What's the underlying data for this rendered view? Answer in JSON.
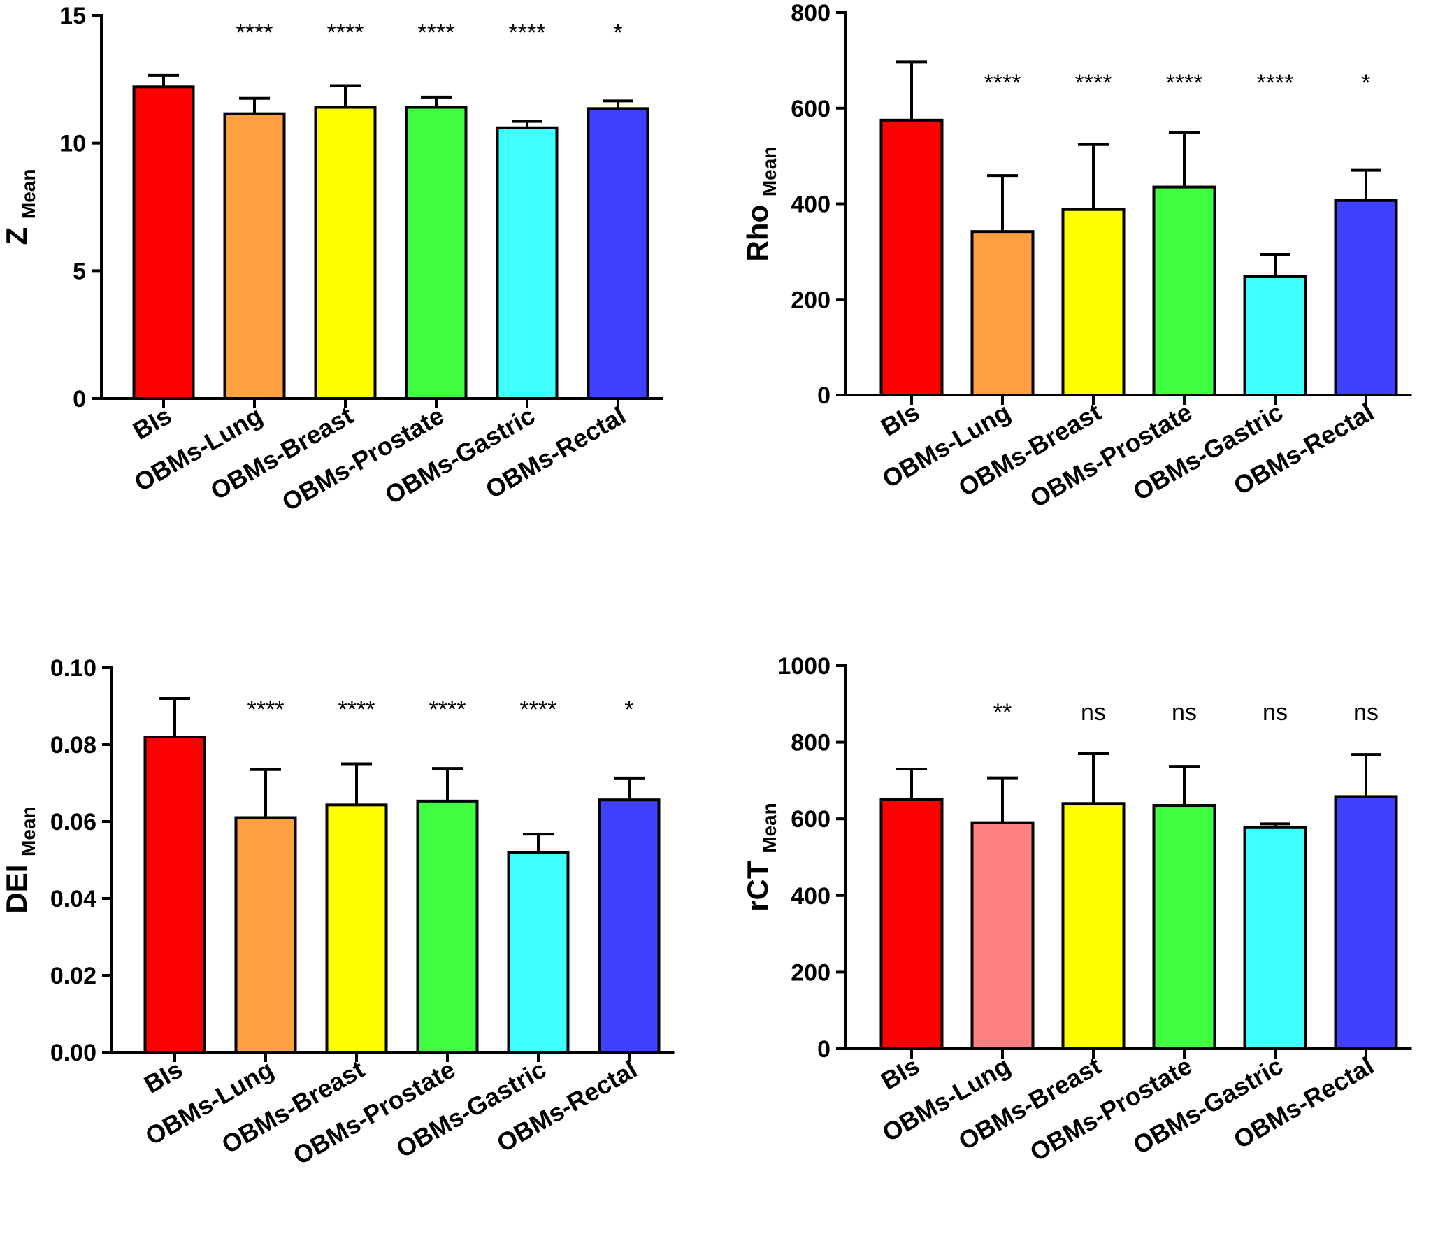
{
  "chart_data": [
    {
      "type": "bar",
      "id": "z",
      "ylabel": "Z",
      "ylabel_sub": "Mean",
      "categories": [
        "BIs",
        "OBMs-Lung",
        "OBMs-Breast",
        "OBMs-Prostate",
        "OBMs-Gastric",
        "OBMs-Rectal"
      ],
      "values": [
        12.2,
        11.15,
        11.4,
        11.4,
        10.6,
        11.35
      ],
      "errors": [
        0.45,
        0.6,
        0.85,
        0.4,
        0.25,
        0.3
      ],
      "annotations": [
        "",
        "****",
        "****",
        "****",
        "****",
        "*"
      ],
      "colors": [
        "#ff0000",
        "#ffa040",
        "#ffff00",
        "#40ff40",
        "#40ffff",
        "#4040ff"
      ],
      "ylim": [
        0,
        15
      ],
      "yticks": [
        0,
        5,
        10,
        15
      ],
      "ytick_labels": [
        "0",
        "5",
        "10",
        "15"
      ]
    },
    {
      "type": "bar",
      "id": "rho",
      "ylabel": "Rho",
      "ylabel_sub": "Mean",
      "categories": [
        "BIs",
        "OBMs-Lung",
        "OBMs-Breast",
        "OBMs-Prostate",
        "OBMs-Gastric",
        "OBMs-Rectal"
      ],
      "values": [
        575,
        342,
        388,
        435,
        248,
        407
      ],
      "errors": [
        122,
        117,
        136,
        115,
        46,
        63
      ],
      "annotations": [
        "",
        "****",
        "****",
        "****",
        "****",
        "*"
      ],
      "colors": [
        "#ff0000",
        "#ffa040",
        "#ffff00",
        "#40ff40",
        "#40ffff",
        "#4040ff"
      ],
      "ylim": [
        0,
        800
      ],
      "yticks": [
        0,
        200,
        400,
        600,
        800
      ],
      "ytick_labels": [
        "0",
        "200",
        "400",
        "600",
        "800"
      ]
    },
    {
      "type": "bar",
      "id": "dei",
      "ylabel": "DEI",
      "ylabel_sub": "Mean",
      "categories": [
        "BIs",
        "OBMs-Lung",
        "OBMs-Breast",
        "OBMs-Prostate",
        "OBMs-Gastric",
        "OBMs-Rectal"
      ],
      "values": [
        0.082,
        0.061,
        0.0643,
        0.0653,
        0.052,
        0.0656
      ],
      "errors": [
        0.01,
        0.0125,
        0.0107,
        0.0085,
        0.0047,
        0.0057
      ],
      "annotations": [
        "",
        "****",
        "****",
        "****",
        "****",
        "*"
      ],
      "colors": [
        "#ff0000",
        "#ffa040",
        "#ffff00",
        "#40ff40",
        "#40ffff",
        "#4040ff"
      ],
      "ylim": [
        0,
        0.1
      ],
      "yticks": [
        0,
        0.02,
        0.04,
        0.06,
        0.08,
        0.1
      ],
      "ytick_labels": [
        "0.00",
        "0.02",
        "0.04",
        "0.06",
        "0.08",
        "0.10"
      ]
    },
    {
      "type": "bar",
      "id": "rct",
      "ylabel": "rCT",
      "ylabel_sub": "Mean",
      "categories": [
        "BIs",
        "OBMs-Lung",
        "OBMs-Breast",
        "OBMs-Prostate",
        "OBMs-Gastric",
        "OBMs-Rectal"
      ],
      "values": [
        650,
        590,
        640,
        635,
        577,
        658
      ],
      "errors": [
        80,
        117,
        130,
        102,
        10,
        110
      ],
      "annotations": [
        "",
        "**",
        "ns",
        "ns",
        "ns",
        "ns"
      ],
      "colors": [
        "#ff0000",
        "#ff8080",
        "#ffff00",
        "#40ff40",
        "#40ffff",
        "#4040ff"
      ],
      "ylim": [
        0,
        1000
      ],
      "yticks": [
        0,
        200,
        400,
        600,
        800,
        1000
      ],
      "ytick_labels": [
        "0",
        "200",
        "400",
        "600",
        "800",
        "1000"
      ]
    }
  ]
}
